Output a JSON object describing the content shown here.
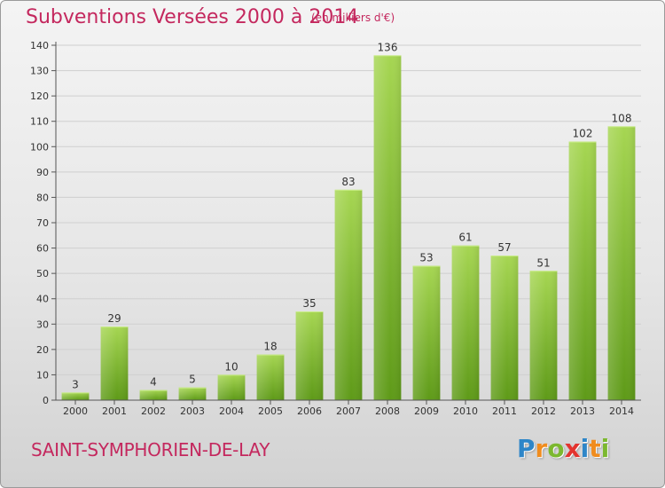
{
  "header": {
    "title": "Subventions Versées 2000 à 2014",
    "subtitle": "(en milliers d'€)"
  },
  "footer": {
    "place": "SAINT-SYMPHORIEN-DE-LAY",
    "logo_letters": [
      "P",
      "r",
      "o",
      "x",
      "i",
      "t",
      "i"
    ],
    "logo_colors": [
      "#2e86c8",
      "#f08c1e",
      "#7cb82f",
      "#e3342f",
      "#2e86c8",
      "#f08c1e",
      "#7cb82f"
    ]
  },
  "colors": {
    "accent": "#c4285e",
    "bar_light": "#a6d652",
    "bar_dark": "#5e9a18",
    "axis": "#555555",
    "grid": "#cfcfcf"
  },
  "chart_data": {
    "type": "bar",
    "categories": [
      "2000",
      "2001",
      "2002",
      "2003",
      "2004",
      "2005",
      "2006",
      "2007",
      "2008",
      "2009",
      "2010",
      "2011",
      "2012",
      "2013",
      "2014"
    ],
    "values": [
      3,
      29,
      4,
      5,
      10,
      18,
      35,
      83,
      136,
      53,
      61,
      57,
      51,
      102,
      108
    ],
    "title": "Subventions Versées 2000 à 2014",
    "subtitle": "(en milliers d'€)",
    "ylim": [
      0,
      140
    ],
    "ytick_step": 10,
    "grid": true,
    "legend": "none"
  }
}
